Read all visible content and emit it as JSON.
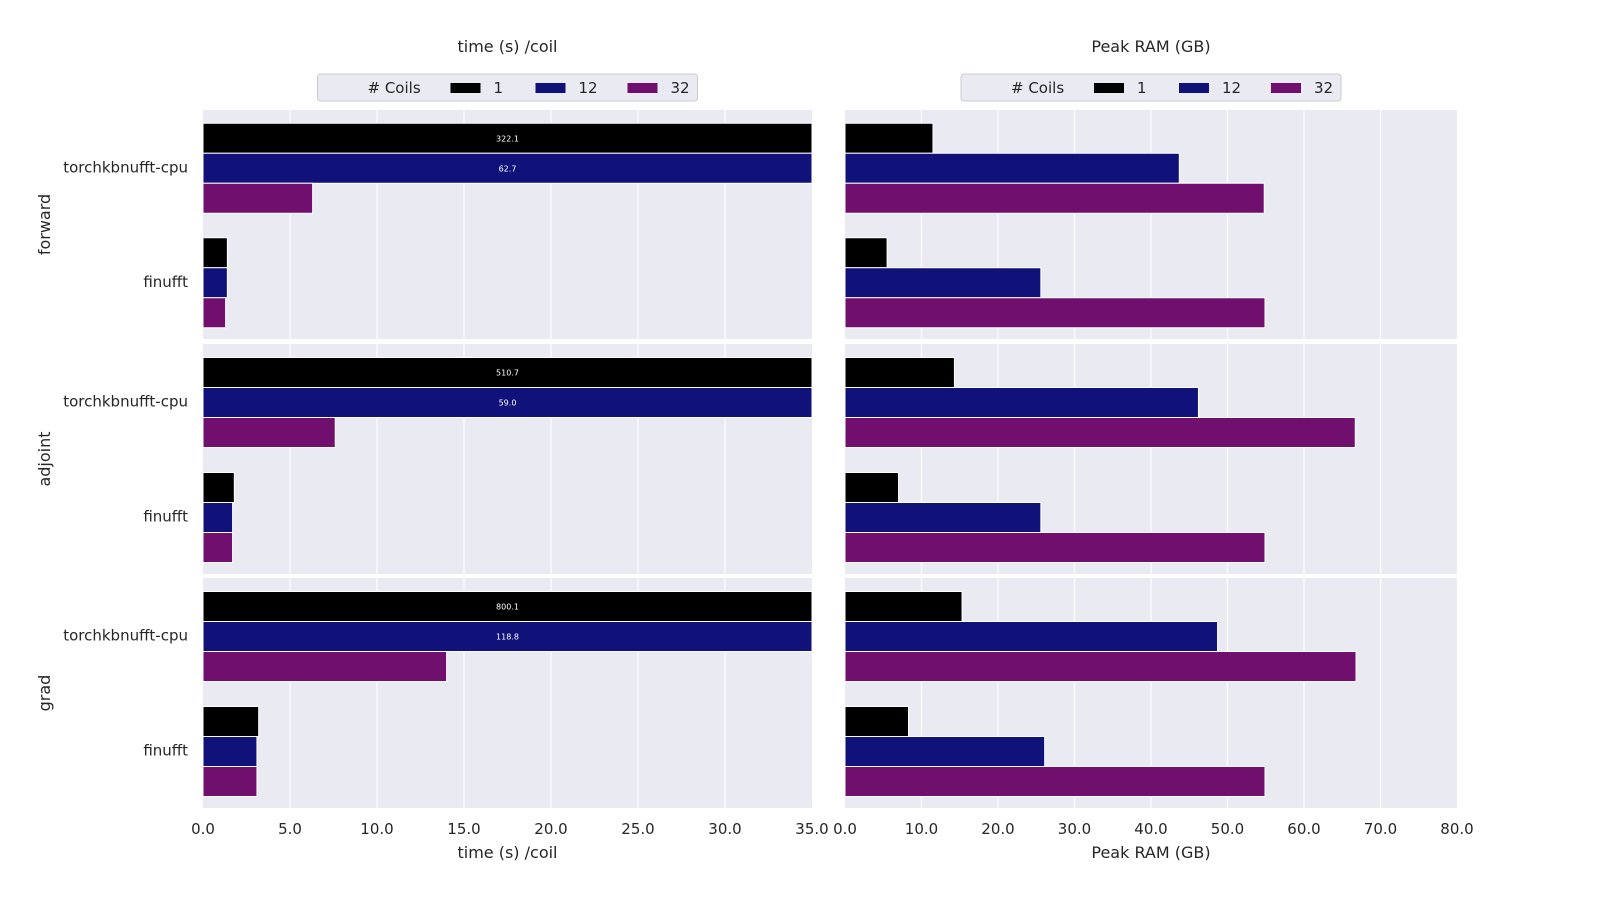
{
  "chart_data": {
    "type": "bar",
    "orientation": "horizontal",
    "legend": {
      "title": "# Coils",
      "entries": [
        {
          "label": "1",
          "color": "#000000"
        },
        {
          "label": "12",
          "color": "#10127a"
        },
        {
          "label": "32",
          "color": "#700f6e"
        }
      ],
      "placement": "top-center"
    },
    "row_labels": [
      "forward",
      "adjoint",
      "grad"
    ],
    "categories": [
      "torchkbnufft-cpu",
      "finufft"
    ],
    "series_names": [
      "1",
      "12",
      "32"
    ],
    "columns": [
      {
        "title": "time (s) /coil",
        "xlabel": "time (s) /coil",
        "xlim": [
          0,
          35
        ],
        "ticks": [
          "0.0",
          "5.0",
          "10.0",
          "15.0",
          "20.0",
          "25.0",
          "30.0",
          "35.0"
        ],
        "overflow_labels": [
          [
            "322.1",
            "62.7"
          ],
          [
            "510.7",
            "59.0"
          ],
          [
            "800.1",
            "118.8"
          ]
        ],
        "rows": [
          {
            "name": "forward",
            "values": {
              "torchkbnufft-cpu": [
                322.1,
                62.7,
                6.3
              ],
              "finufft": [
                1.4,
                1.4,
                1.3
              ]
            }
          },
          {
            "name": "adjoint",
            "values": {
              "torchkbnufft-cpu": [
                510.7,
                59.0,
                7.6
              ],
              "finufft": [
                1.8,
                1.7,
                1.7
              ]
            }
          },
          {
            "name": "grad",
            "values": {
              "torchkbnufft-cpu": [
                800.1,
                118.8,
                14.0
              ],
              "finufft": [
                3.2,
                3.1,
                3.1
              ]
            }
          }
        ]
      },
      {
        "title": "Peak RAM (GB)",
        "xlabel": "Peak RAM (GB)",
        "xlim": [
          0,
          80
        ],
        "ticks": [
          "0.0",
          "10.0",
          "20.0",
          "30.0",
          "40.0",
          "50.0",
          "60.0",
          "70.0",
          "80.0"
        ],
        "rows": [
          {
            "name": "forward",
            "values": {
              "torchkbnufft-cpu": [
                11.5,
                43.7,
                54.8
              ],
              "finufft": [
                5.5,
                25.6,
                54.9
              ]
            }
          },
          {
            "name": "adjoint",
            "values": {
              "torchkbnufft-cpu": [
                14.3,
                46.2,
                66.7
              ],
              "finufft": [
                7.0,
                25.6,
                54.9
              ]
            }
          },
          {
            "name": "grad",
            "values": {
              "torchkbnufft-cpu": [
                15.3,
                48.7,
                66.8
              ],
              "finufft": [
                8.3,
                26.1,
                54.9
              ]
            }
          }
        ]
      }
    ]
  }
}
